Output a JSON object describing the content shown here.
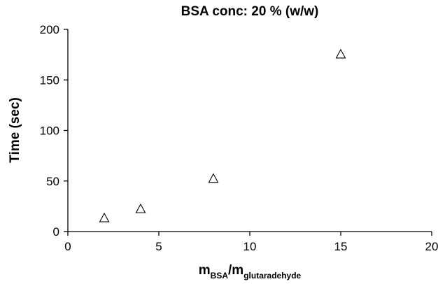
{
  "chart_data": {
    "type": "scatter",
    "title": "BSA conc: 20 % (w/w)",
    "xlabel": {
      "base1": "m",
      "sub1": "BSA",
      "sep": "/m",
      "sub2": "glutaradehyde"
    },
    "ylabel": "Time (sec)",
    "xlim": [
      0,
      20
    ],
    "ylim": [
      0,
      200
    ],
    "xticks": [
      0,
      5,
      10,
      15,
      20
    ],
    "yticks": [
      0,
      50,
      100,
      150,
      200
    ],
    "xtick_labels": [
      "0",
      "5",
      "10",
      "15",
      "20"
    ],
    "ytick_labels": [
      "0",
      "50",
      "100",
      "150",
      "200"
    ],
    "marker": "open-triangle",
    "grid": false,
    "series": [
      {
        "points": [
          {
            "x": 2,
            "y": 13
          },
          {
            "x": 4,
            "y": 22
          },
          {
            "x": 8,
            "y": 52
          },
          {
            "x": 15,
            "y": 175
          }
        ]
      }
    ]
  }
}
